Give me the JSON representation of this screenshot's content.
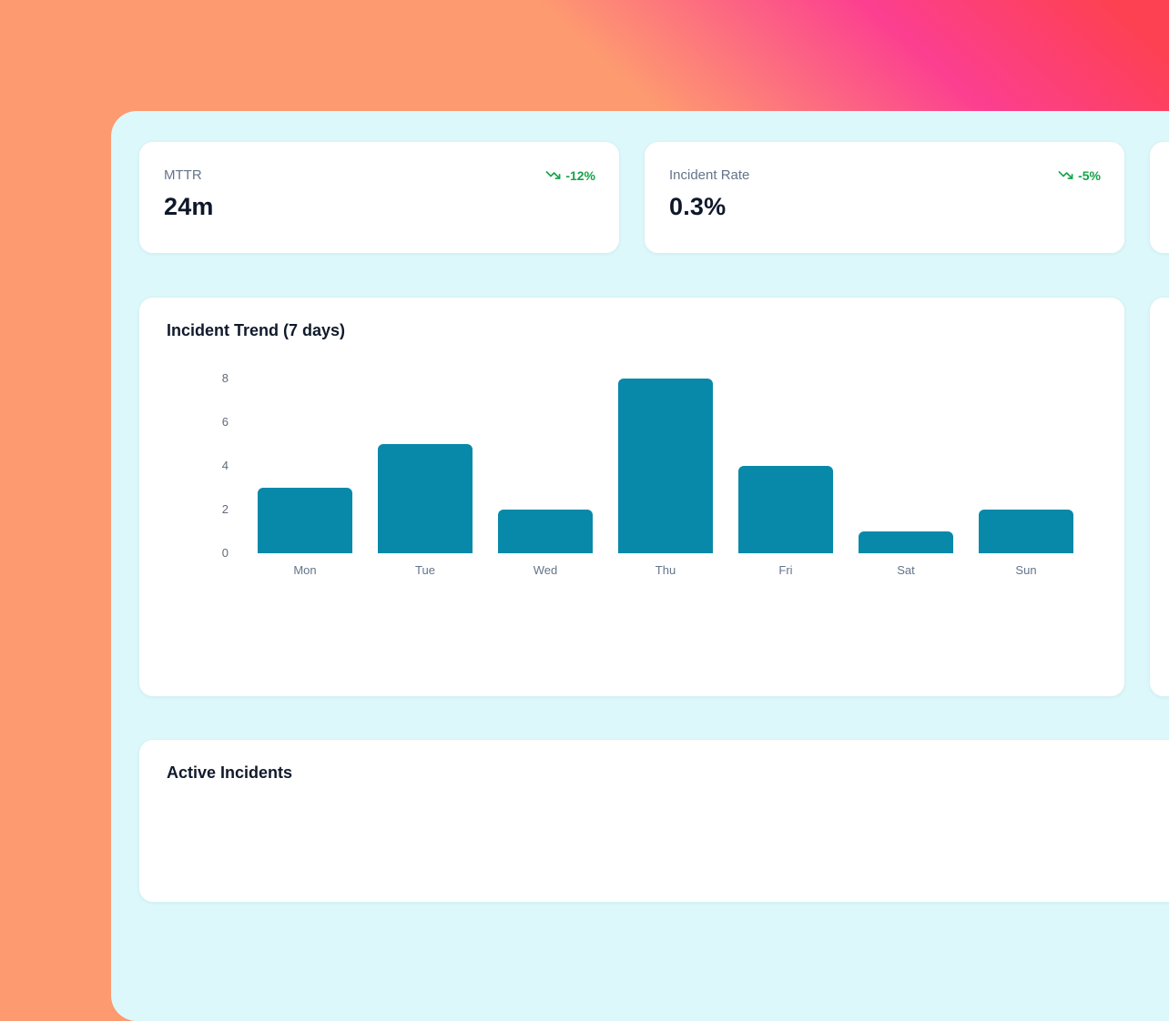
{
  "colors": {
    "bg_orange": "#fd9a70",
    "bg_pink": "#fc3f90",
    "bg_red": "#fd4152",
    "panel_bg": "#ddf8fa",
    "card_bg": "#ffffff",
    "bar_teal": "#0889a9",
    "trend_green": "#16a34a",
    "label_gray": "#64748b",
    "text_dark": "#0f172a"
  },
  "metrics": [
    {
      "label": "MTTR",
      "value": "24m",
      "trend": "-12%",
      "trend_icon": "trending-down-icon"
    },
    {
      "label": "Incident Rate",
      "value": "0.3%",
      "trend": "-5%",
      "trend_icon": "trending-down-icon"
    }
  ],
  "chart_card": {
    "title": "Incident Trend (7 days)"
  },
  "incidents_card": {
    "title": "Active Incidents"
  },
  "chart_data": {
    "type": "bar",
    "title": "Incident Trend (7 days)",
    "categories": [
      "Mon",
      "Tue",
      "Wed",
      "Thu",
      "Fri",
      "Sat",
      "Sun"
    ],
    "values": [
      3,
      5,
      2,
      8,
      4,
      1,
      2
    ],
    "xlabel": "",
    "ylabel": "",
    "ylim": [
      0,
      8
    ],
    "yticks": [
      0,
      2,
      4,
      6,
      8
    ],
    "grid": false,
    "legend": false,
    "bar_color": "#0889a9"
  }
}
